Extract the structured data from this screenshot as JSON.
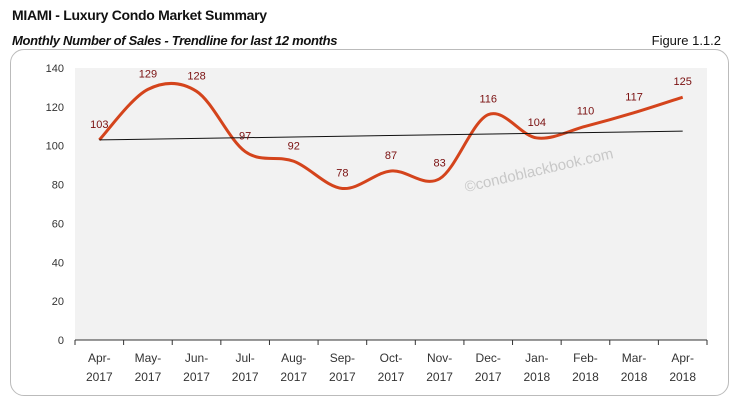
{
  "header": {
    "title": "MIAMI - Luxury Condo Market Summary",
    "subtitle": "Monthly Number of Sales - Trendline for last 12 months",
    "figure": "Figure 1.1.2"
  },
  "watermark": "©condoblackbook.com",
  "chart_data": {
    "type": "line",
    "title": "Monthly Number of Sales - Trendline for last 12 months",
    "categories": [
      [
        "Apr-",
        "2017"
      ],
      [
        "May-",
        "2017"
      ],
      [
        "Jun-",
        "2017"
      ],
      [
        "Jul-",
        "2017"
      ],
      [
        "Aug-",
        "2017"
      ],
      [
        "Sep-",
        "2017"
      ],
      [
        "Oct-",
        "2017"
      ],
      [
        "Nov-",
        "2017"
      ],
      [
        "Dec-",
        "2017"
      ],
      [
        "Jan-",
        "2018"
      ],
      [
        "Feb-",
        "2018"
      ],
      [
        "Mar-",
        "2018"
      ],
      [
        "Apr-",
        "2018"
      ]
    ],
    "series": [
      {
        "name": "Sales",
        "values": [
          103,
          129,
          128,
          97,
          92,
          78,
          87,
          83,
          116,
          104,
          110,
          117,
          125
        ],
        "color": "#d4441c"
      }
    ],
    "trendline": {
      "start": 103,
      "end": 107.5,
      "color": "#111111"
    },
    "ylim": [
      0,
      140
    ],
    "yticks": [
      0,
      20,
      40,
      60,
      80,
      100,
      120,
      140
    ],
    "label_color": "#7a1010",
    "plot_bg": "#f2f2f2",
    "grid": false
  }
}
